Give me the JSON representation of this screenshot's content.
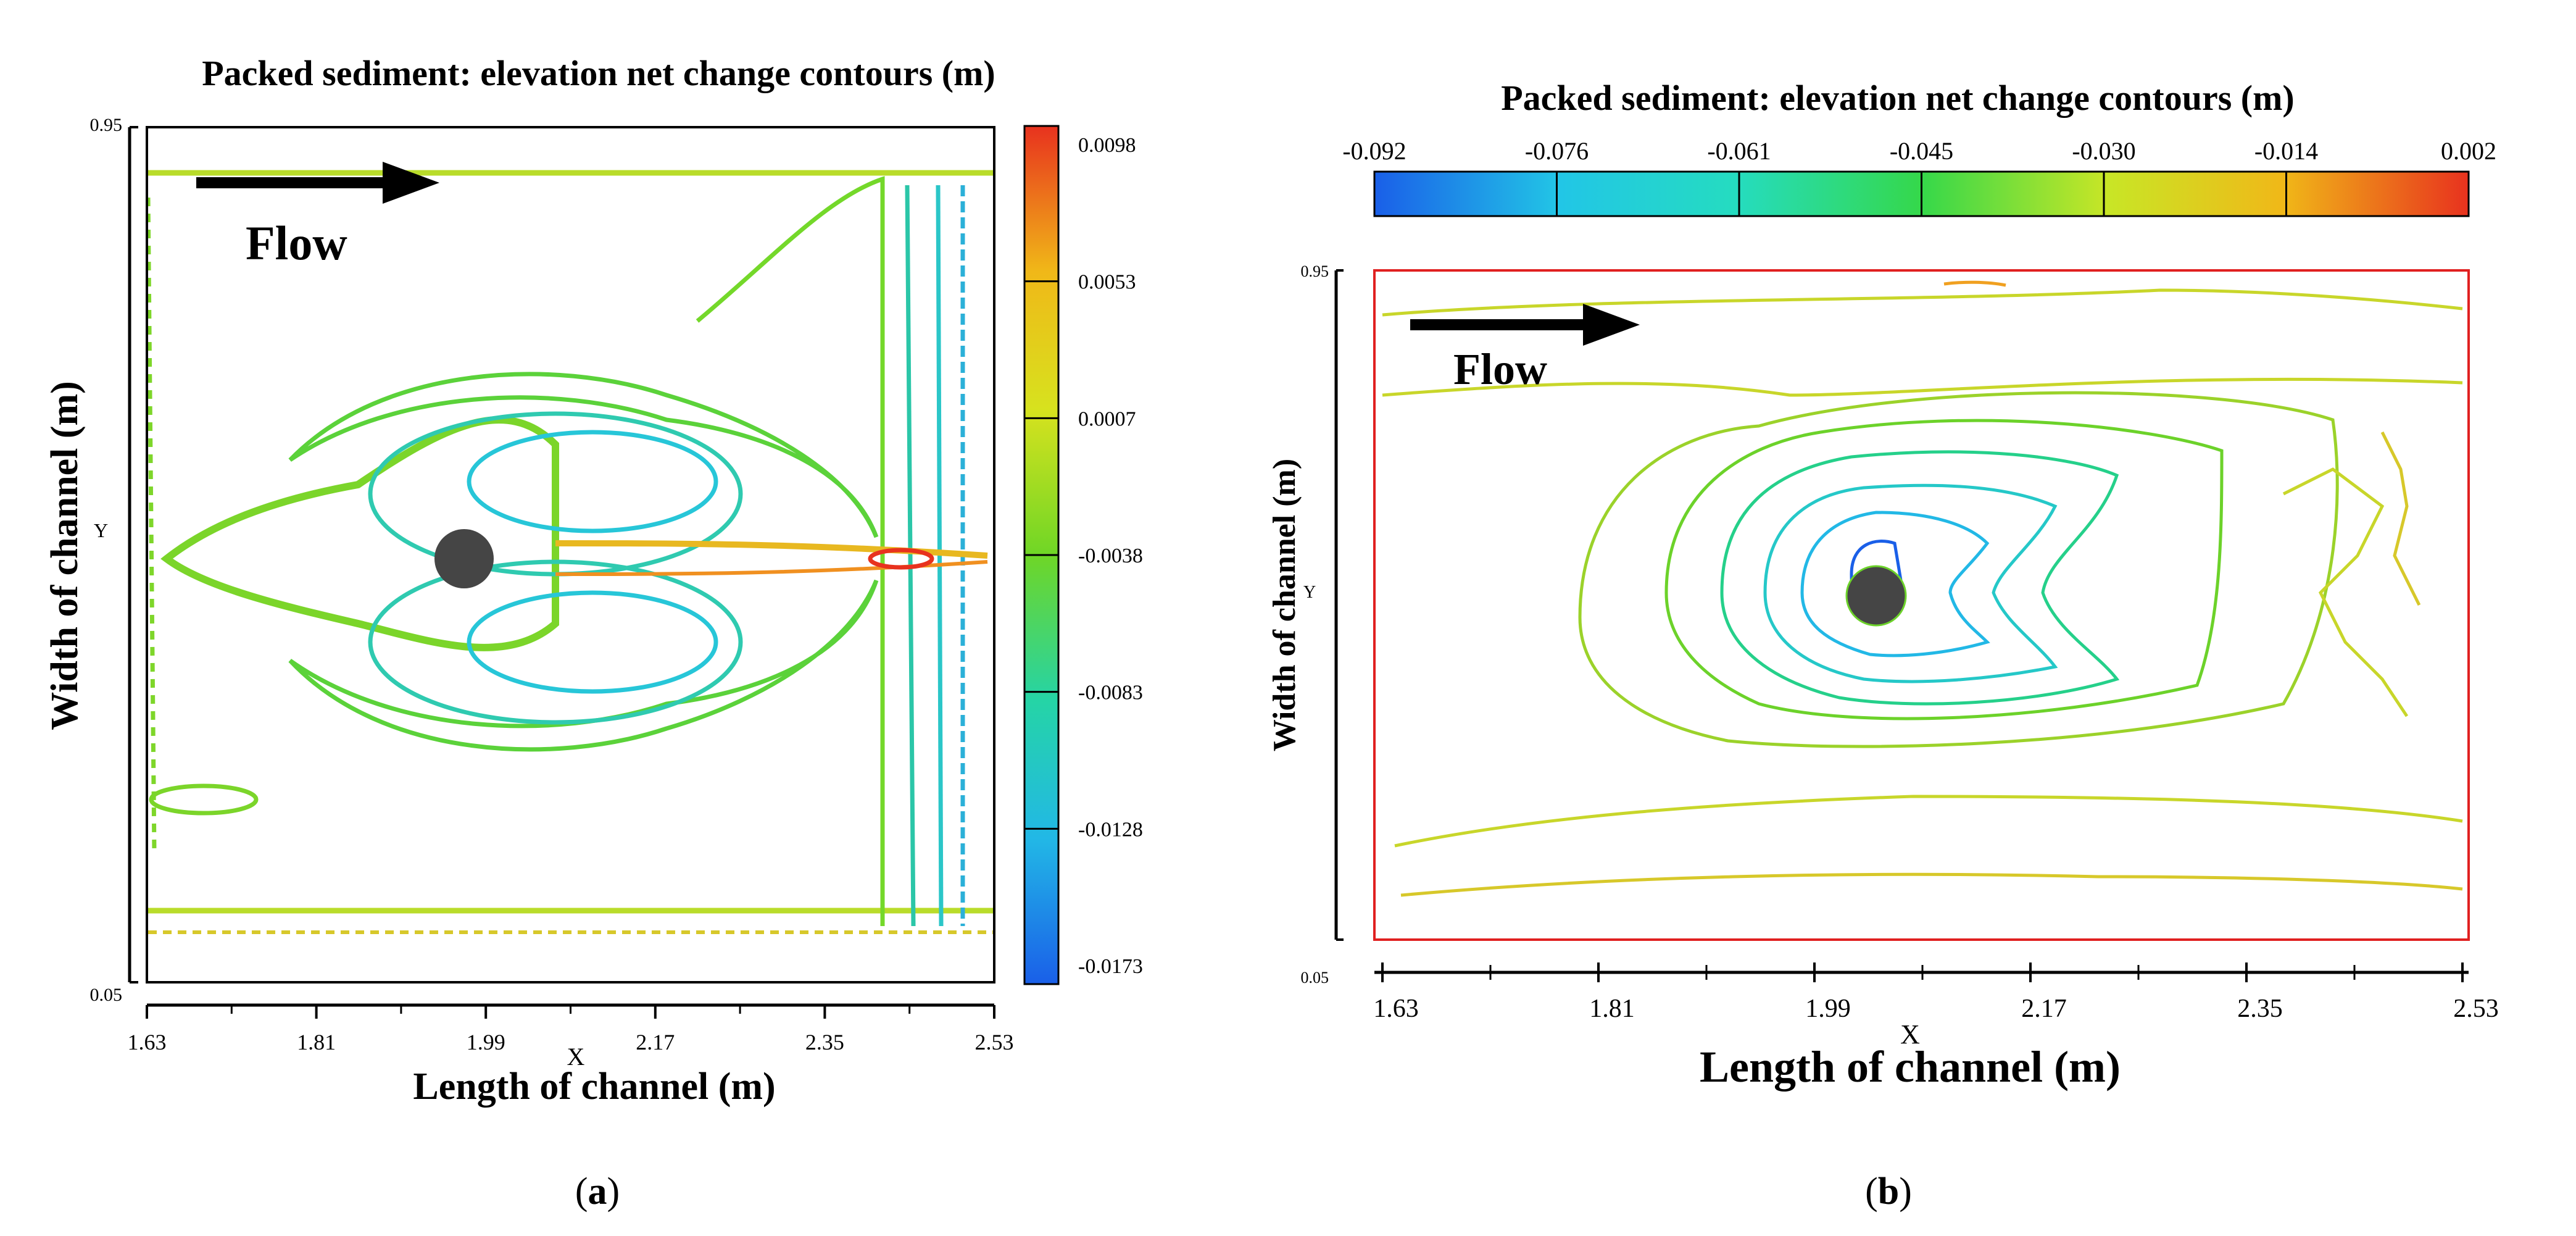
{
  "figure": {
    "panels": [
      {
        "id": "a",
        "label": "a",
        "title": "Packed sediment: elevation net change contours (m)",
        "xlabel": "Length of channel (m)",
        "ylabel": "Width of channel (m)",
        "x_symbol": "X",
        "y_symbol": "Y",
        "flow_label": "Flow"
      },
      {
        "id": "b",
        "label": "b",
        "title": "Packed sediment: elevation net change contours (m)",
        "xlabel": "Length of channel (m)",
        "ylabel": "Width of channel (m)",
        "x_symbol": "X",
        "y_symbol": "Y",
        "flow_label": "Flow"
      }
    ]
  },
  "chart_data": [
    {
      "type": "contour",
      "panel": "a",
      "title": "Packed sediment: elevation net change contours (m)",
      "xlabel": "Length of channel (m)",
      "ylabel": "Width of channel (m)",
      "xlim": [
        1.63,
        2.53
      ],
      "ylim": [
        0.05,
        0.95
      ],
      "x_ticks": [
        1.63,
        1.81,
        1.99,
        2.17,
        2.35,
        2.53
      ],
      "y_ticks": [
        0.05,
        0.95
      ],
      "colorbar": {
        "orientation": "vertical",
        "levels": [
          0.0098,
          0.0053,
          0.0007,
          -0.0038,
          -0.0083,
          -0.0128,
          -0.0173
        ],
        "labels": [
          "0.0098",
          "0.0053",
          "0.0007",
          "-0.0038",
          "-0.0083",
          "-0.0128",
          "-0.0173"
        ],
        "colors": [
          "#e8321e",
          "#f0b818",
          "#d7e21e",
          "#6fd626",
          "#25d4a6",
          "#22b8e6",
          "#1a5fe8"
        ]
      },
      "pier": {
        "x": 1.96,
        "y": 0.5
      }
    },
    {
      "type": "contour",
      "panel": "b",
      "title": "Packed sediment: elevation net change contours (m)",
      "xlabel": "Length of channel (m)",
      "ylabel": "Width of channel (m)",
      "xlim": [
        1.63,
        2.53
      ],
      "ylim": [
        0.05,
        0.95
      ],
      "x_ticks": [
        1.63,
        1.81,
        1.99,
        2.17,
        2.35,
        2.53
      ],
      "y_ticks": [
        0.05,
        0.95
      ],
      "colorbar": {
        "orientation": "horizontal",
        "levels": [
          -0.092,
          -0.076,
          -0.061,
          -0.045,
          -0.03,
          -0.014,
          0.002
        ],
        "labels": [
          "-0.092",
          "-0.076",
          "-0.061",
          "-0.045",
          "-0.030",
          "-0.014",
          "0.002"
        ],
        "colors": [
          "#1a5fe8",
          "#22c6e6",
          "#25dcc0",
          "#35d84a",
          "#c8e626",
          "#f0b818",
          "#e8321e"
        ]
      },
      "pier": {
        "x": 2.04,
        "y": 0.5
      }
    }
  ]
}
